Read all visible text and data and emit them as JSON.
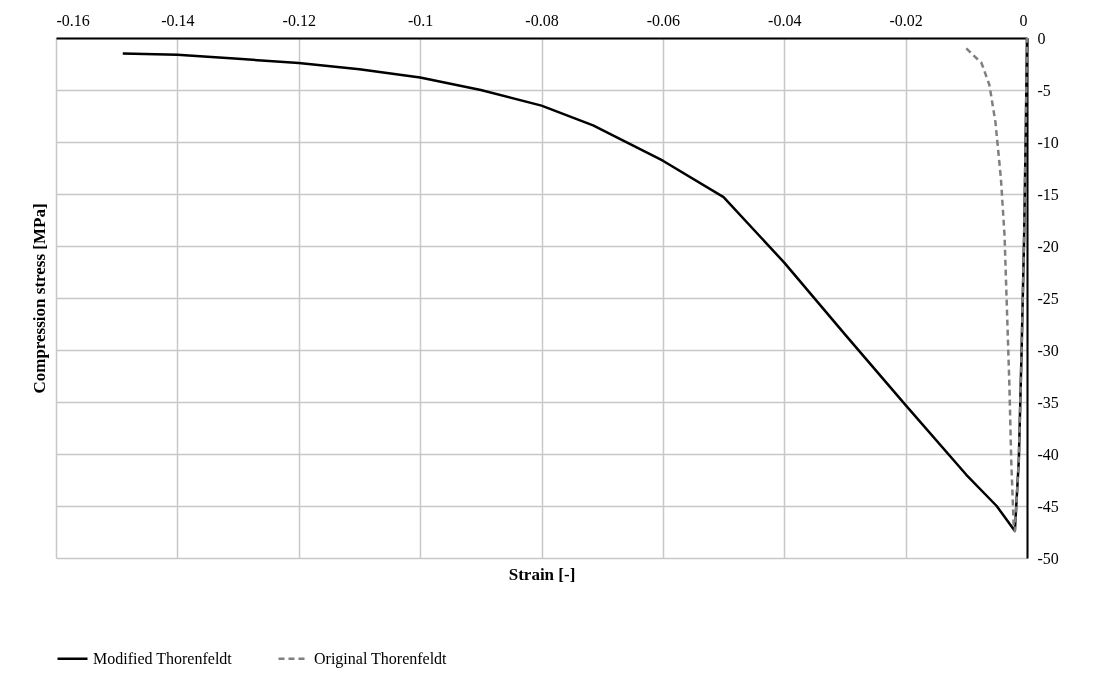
{
  "chart_data": {
    "type": "line",
    "xlabel": "Strain [-]",
    "ylabel": "Compression stress [MPa]",
    "xlim": [
      -0.16,
      0
    ],
    "ylim": [
      -50,
      0
    ],
    "xticks": [
      -0.16,
      -0.14,
      -0.12,
      -0.1,
      -0.08,
      -0.06,
      -0.04,
      -0.02,
      0
    ],
    "yticks": [
      0,
      -5,
      -10,
      -15,
      -20,
      -25,
      -30,
      -35,
      -40,
      -45,
      -50
    ],
    "grid": true,
    "legend": "bottom",
    "series": [
      {
        "name": "Modified Thorenfeldt",
        "color": "#000000",
        "line_style": "solid",
        "x": [
          -0.149,
          -0.14,
          -0.13,
          -0.12,
          -0.11,
          -0.1,
          -0.09,
          -0.08,
          -0.0715,
          -0.06,
          -0.05,
          -0.04,
          -0.03,
          -0.02,
          -0.01,
          -0.005,
          -0.002,
          -0.00135,
          -0.00088,
          -0.00047,
          -0.00018,
          0
        ],
        "values": [
          -1.5,
          -1.6,
          -2.0,
          -2.4,
          -3.0,
          -3.8,
          -5.0,
          -6.5,
          -8.4,
          -11.8,
          -15.3,
          -21.6,
          -28.5,
          -35.3,
          -42,
          -45,
          -47.4,
          -40.6,
          -29.8,
          -19,
          -8.1,
          0
        ]
      },
      {
        "name": "Original Thorenfeldt",
        "color": "#808080",
        "line_style": "dashed",
        "x": [
          -0.01,
          -0.0075,
          -0.0062,
          -0.0052,
          -0.0043,
          -0.0037,
          -0.0033,
          -0.0029,
          -0.0026,
          -0.0022,
          -0.002,
          -0.00135,
          -0.00088,
          -0.00047,
          -0.00018,
          0
        ],
        "values": [
          -1.0,
          -2.4,
          -4.5,
          -8.1,
          -13.5,
          -19,
          -26.2,
          -33.4,
          -40.6,
          -46.8,
          -47.4,
          -40.6,
          -29.8,
          -19,
          -8.1,
          0
        ]
      }
    ]
  }
}
